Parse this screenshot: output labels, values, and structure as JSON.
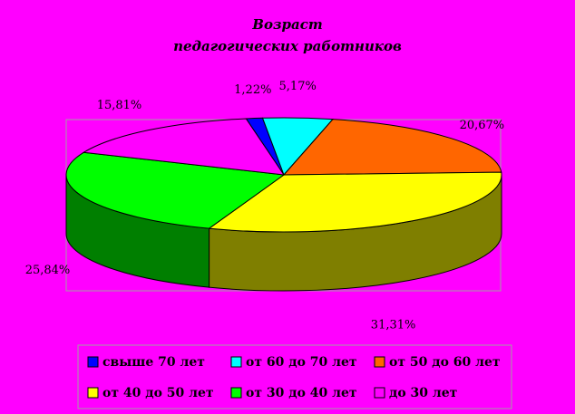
{
  "chart_data": {
    "type": "pie",
    "title": [
      "Возраст",
      "педагогических работников"
    ],
    "slices": [
      {
        "label": "свыше 70 лет",
        "value": 1.22,
        "display": "1,22%",
        "color": "#0000ff",
        "side_color": "#00007f"
      },
      {
        "label": "от 60 до 70 лет",
        "value": 5.17,
        "display": "5,17%",
        "color": "#00ffff",
        "side_color": "#007f7f"
      },
      {
        "label": "от 50 до 60 лет",
        "value": 20.67,
        "display": "20,67%",
        "color": "#ff6600",
        "side_color": "#7f3300"
      },
      {
        "label": "от 40 до 50 лет",
        "value": 31.31,
        "display": "31,31%",
        "color": "#ffff00",
        "side_color": "#7f7f00"
      },
      {
        "label": "от 30 до 40 лет",
        "value": 25.84,
        "display": "25,84%",
        "color": "#00ff00",
        "side_color": "#007f00"
      },
      {
        "label": "до 30 лет",
        "value": 15.81,
        "display": "15,81%",
        "color": "#ff00ff",
        "side_color": "#7f007f"
      }
    ],
    "legend_placement": "bottom"
  }
}
